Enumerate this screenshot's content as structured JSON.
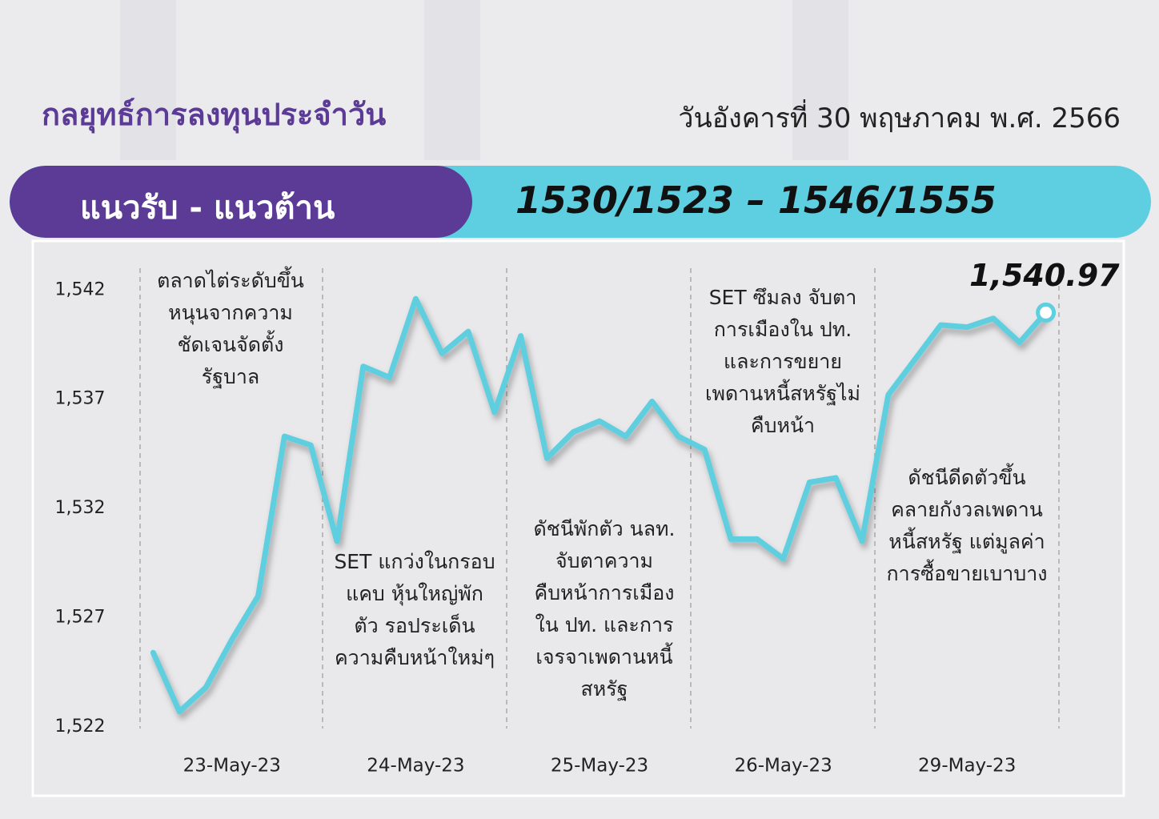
{
  "header": {
    "title": "กลยุทธ์การลงทุนประจำวัน",
    "date": "วันอังคารที่ 30 พฤษภาคม พ.ศ. 2566"
  },
  "banner": {
    "label": "แนวรับ - แนวต้าน",
    "levels": "1530/1523 – 1546/1555"
  },
  "chart_data": {
    "type": "line",
    "categories": [
      null,
      null,
      null,
      "23-May-23",
      null,
      null,
      null,
      null,
      null,
      null,
      "24-May-23",
      null,
      null,
      null,
      null,
      null,
      null,
      "25-May-23",
      null,
      null,
      null,
      null,
      null,
      null,
      "26-May-23",
      null,
      null,
      null,
      null,
      null,
      null,
      "29-May-23",
      null,
      null,
      null
    ],
    "series": [
      {
        "color": "#5ecfdf",
        "values": [
          1525.4,
          1522.7,
          1523.8,
          1526.0,
          1528.0,
          1535.3,
          1534.9,
          1530.5,
          1538.5,
          1538.0,
          1541.6,
          1539.1,
          1540.1,
          1536.4,
          1539.9,
          1534.3,
          1535.5,
          1536.0,
          1535.3,
          1536.9,
          1535.3,
          1534.7,
          1530.6,
          1530.6,
          1529.7,
          1533.2,
          1533.4,
          1530.5,
          1537.2,
          1538.8,
          1540.4,
          1540.3,
          1540.7,
          1539.6,
          1540.97
        ],
        "value_labels": [
          null,
          null,
          null,
          null,
          null,
          null,
          null,
          null,
          null,
          null,
          null,
          null,
          null,
          null,
          null,
          null,
          null,
          null,
          null,
          null,
          null,
          null,
          null,
          null,
          null,
          null,
          null,
          null,
          null,
          null,
          null,
          null,
          null,
          null,
          "1,540.97"
        ]
      }
    ],
    "ylim": [
      1522,
      1543
    ],
    "yticks": [
      {
        "value": 1522,
        "label": "1,522"
      },
      {
        "value": 1527,
        "label": "1,527"
      },
      {
        "value": 1532,
        "label": "1,532"
      },
      {
        "value": 1537,
        "label": "1,537"
      },
      {
        "value": 1542,
        "label": "1,542"
      }
    ],
    "annotations": [
      [
        "ตลาดไต่ระดับขึ้น",
        "หนุนจากความ",
        "ชัดเจนจัดตั้ง",
        "รัฐบาล"
      ],
      [
        "SET แกว่งในกรอบ",
        "แคบ หุ้นใหญ่พัก",
        "ตัว รอประเด็น",
        "ความคืบหน้าใหม่ๆ"
      ],
      [
        "ดัชนีพักตัว นลท.",
        "จับตาความ",
        "คืบหน้าการเมือง",
        "ใน ปท. และการ",
        "เจรจาเพดานหนี้",
        "สหรัฐ"
      ],
      [
        "SET ซึมลง จับตา",
        "การเมืองใน ปท.",
        "และการขยาย",
        "เพดานหนี้สหรัฐไม่",
        "คืบหน้า"
      ],
      [
        "ดัชนีดีดตัวขึ้น",
        "คลายกังวลเพดาน",
        "หนี้สหรัฐ แต่มูลค่า",
        "การซื้อขายเบาบาง"
      ]
    ]
  }
}
